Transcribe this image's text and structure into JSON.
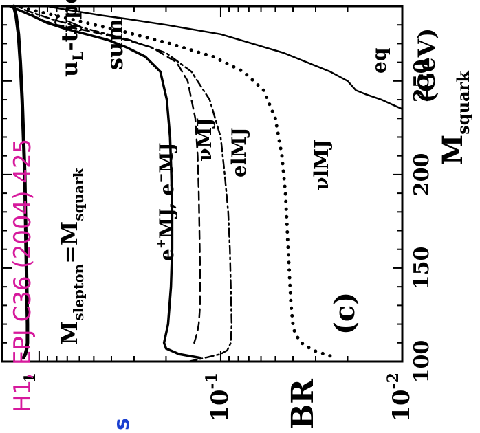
{
  "overlay": {
    "reference": "H1, EPJ C36 (2004) 425",
    "reference_color": "#d6199c",
    "corner_mark": "s",
    "corner_mark_color": "#1a3fd0"
  },
  "chart_data": {
    "type": "line",
    "orientation": "rotated-90-ccw",
    "xlabel": "M",
    "xlabel_sub": "squark",
    "xlabel_unit": "(GeV)",
    "xlim": [
      100,
      290
    ],
    "x_ticks": [
      "100",
      "150",
      "200",
      "250"
    ],
    "ylabel": "BR",
    "ylim": [
      0.01,
      1.6
    ],
    "y_scale": "log",
    "y_ticks": [
      {
        "base": "10",
        "exp": "-2"
      },
      {
        "base": "10",
        "exp": "-1"
      },
      {
        "base": "",
        "exp": "1"
      }
    ],
    "annotations": {
      "panel": "(c)",
      "type_label": "u",
      "type_sub": "L",
      "type_tail": "-type",
      "type_tilde": "~",
      "mass_m1": "M",
      "mass_sub1": "slepton",
      "mass_eq": "=M",
      "mass_sub2": "squark",
      "sum": "sum",
      "emj_eplus": "e",
      "emj_sup1": "+",
      "emj_mid": "MJ, e",
      "emj_sup2": "−",
      "emj_tail": "MJ",
      "numj": "νMJ",
      "elmj": "elMJ",
      "nulmj": "νlMJ",
      "eq": "eq"
    },
    "series": [
      {
        "key": "sum",
        "style": "solid-thick",
        "x": [
          102,
          104,
          107,
          110,
          120,
          140,
          160,
          180,
          200,
          220,
          240,
          260,
          275,
          285,
          290
        ],
        "y": [
          1.22,
          1.19,
          1.17,
          1.16,
          1.16,
          1.17,
          1.18,
          1.19,
          1.2,
          1.22,
          1.24,
          1.27,
          1.3,
          1.34,
          1.38
        ]
      },
      {
        "key": "emj",
        "style": "solid-medium",
        "x": [
          102,
          104,
          107,
          110,
          115,
          120,
          140,
          160,
          180,
          200,
          220,
          240,
          255,
          263,
          268,
          272,
          275,
          278,
          281,
          285,
          288,
          290
        ],
        "y": [
          0.13,
          0.17,
          0.2,
          0.205,
          0.2,
          0.195,
          0.188,
          0.185,
          0.185,
          0.187,
          0.19,
          0.198,
          0.215,
          0.26,
          0.33,
          0.42,
          0.55,
          0.72,
          0.9,
          1.1,
          1.3,
          1.45
        ]
      },
      {
        "key": "eq",
        "style": "solid-thin",
        "x": [
          235,
          240,
          243,
          245,
          250,
          255,
          265,
          275,
          280,
          283,
          285,
          288,
          290
        ],
        "y": [
          0.01,
          0.013,
          0.016,
          0.018,
          0.02,
          0.025,
          0.045,
          0.1,
          0.2,
          0.32,
          0.45,
          0.7,
          0.9
        ]
      },
      {
        "key": "numj",
        "style": "dashed",
        "x": [
          110,
          115,
          120,
          130,
          150,
          170,
          190,
          210,
          230,
          250,
          260,
          268,
          273,
          277,
          280,
          283,
          286
        ],
        "y": [
          0.14,
          0.135,
          0.132,
          0.13,
          0.13,
          0.131,
          0.132,
          0.134,
          0.138,
          0.152,
          0.175,
          0.24,
          0.36,
          0.55,
          0.8,
          1.0,
          1.12
        ]
      },
      {
        "key": "elmj",
        "style": "dash-dot",
        "x": [
          100,
          102,
          104,
          106,
          110,
          120,
          140,
          160,
          180,
          200,
          220,
          240,
          255,
          265,
          272,
          278,
          283,
          286,
          288,
          290
        ],
        "y": [
          0.15,
          0.122,
          0.1,
          0.092,
          0.088,
          0.087,
          0.088,
          0.089,
          0.091,
          0.095,
          0.1,
          0.115,
          0.145,
          0.2,
          0.32,
          0.55,
          0.85,
          1.05,
          1.2,
          1.3
        ]
      },
      {
        "key": "nulmj",
        "style": "dotted",
        "x": [
          103,
          106,
          110,
          115,
          120,
          130,
          150,
          170,
          190,
          210,
          230,
          245,
          255,
          263,
          270,
          276,
          282,
          287,
          290
        ],
        "y": [
          0.025,
          0.031,
          0.036,
          0.039,
          0.04,
          0.041,
          0.042,
          0.043,
          0.044,
          0.046,
          0.05,
          0.058,
          0.075,
          0.11,
          0.19,
          0.33,
          0.6,
          1.0,
          1.3
        ]
      }
    ]
  }
}
